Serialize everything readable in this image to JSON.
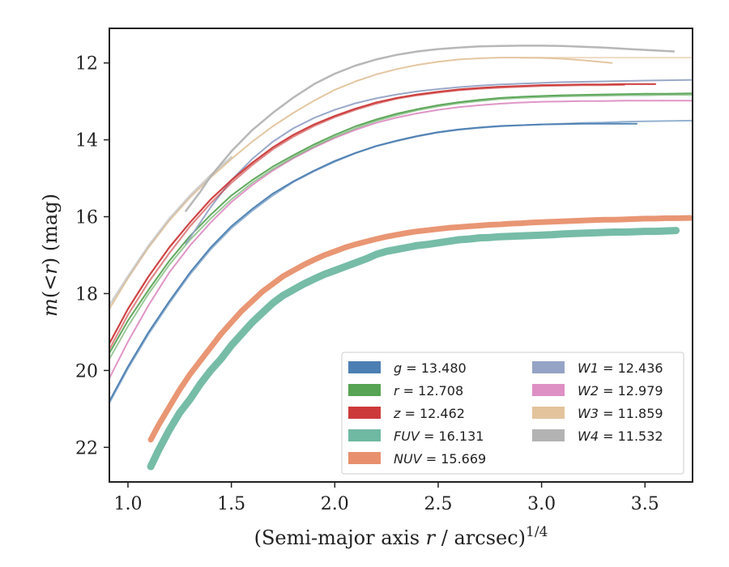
{
  "chart_data": {
    "type": "line",
    "xlabel": "(Semi-major axis r / arcsec)^1/4",
    "xlabel_parts": {
      "prefix": "(Semi-major axis ",
      "var": "r",
      "suffix": " / arcsec)",
      "sup": "1/4"
    },
    "ylabel": "m(< r) (mag)",
    "ylabel_parts": {
      "var": "m",
      "mid": "(<",
      "var2": "r",
      "suffix": ") (mag)"
    },
    "xlim": [
      0.91,
      3.73
    ],
    "ylim": [
      22.9,
      11.1
    ],
    "y_inverted": true,
    "xticks": [
      1.0,
      1.5,
      2.0,
      2.5,
      3.0,
      3.5
    ],
    "xtick_labels": [
      "1.0",
      "1.5",
      "2.0",
      "2.5",
      "3.0",
      "3.5"
    ],
    "yticks": [
      12,
      14,
      16,
      18,
      20,
      22
    ],
    "ytick_labels": [
      "12",
      "14",
      "16",
      "18",
      "20",
      "22"
    ],
    "legend_position": "lower-right",
    "legend_columns": 2,
    "series": [
      {
        "name": "g",
        "value": "13.480",
        "color": "#4c7fb3",
        "width": 2,
        "lines": [
          {
            "x": [
              0.91,
              1.0,
              1.1,
              1.2,
              1.3,
              1.4,
              1.5,
              1.6,
              1.7,
              1.8,
              1.9,
              2.0,
              2.1,
              2.2,
              2.3,
              2.4,
              2.5,
              2.6,
              2.7,
              2.8,
              2.9,
              3.0,
              3.1,
              3.2,
              3.3,
              3.46
            ],
            "y": [
              20.8,
              19.9,
              19.0,
              18.2,
              17.45,
              16.8,
              16.25,
              15.8,
              15.4,
              15.08,
              14.8,
              14.55,
              14.34,
              14.16,
              14.02,
              13.9,
              13.8,
              13.73,
              13.68,
              13.64,
              13.62,
              13.6,
              13.59,
              13.58,
              13.58,
              13.58
            ]
          },
          {
            "x": [
              0.91,
              1.0,
              1.1,
              1.2,
              1.3,
              1.4,
              1.5,
              1.6,
              1.7,
              1.8,
              1.9,
              2.0,
              2.1,
              2.2,
              2.3,
              2.4,
              2.5,
              2.6,
              2.7,
              2.8,
              2.9,
              3.0,
              3.1,
              3.2,
              3.3,
              3.4,
              3.5,
              3.6,
              3.73
            ],
            "y": [
              20.85,
              19.95,
              19.05,
              18.25,
              17.5,
              16.85,
              16.3,
              15.85,
              15.45,
              15.1,
              14.82,
              14.57,
              14.35,
              14.17,
              14.03,
              13.91,
              13.81,
              13.74,
              13.69,
              13.65,
              13.62,
              13.6,
              13.58,
              13.56,
              13.55,
              13.53,
              13.52,
              13.51,
              13.5
            ]
          }
        ]
      },
      {
        "name": "r",
        "value": "12.708",
        "color": "#57a454",
        "width": 2,
        "lines": [
          {
            "x": [
              0.91,
              1.0,
              1.1,
              1.2,
              1.3,
              1.4,
              1.5,
              1.6,
              1.7,
              1.8,
              1.9,
              2.0,
              2.1,
              2.2,
              2.3,
              2.4,
              2.5,
              2.6,
              2.7,
              2.8,
              2.9,
              3.0,
              3.1,
              3.2,
              3.3,
              3.4,
              3.5,
              3.6,
              3.73
            ],
            "y": [
              19.55,
              18.7,
              17.9,
              17.15,
              16.5,
              15.95,
              15.45,
              15.05,
              14.7,
              14.4,
              14.12,
              13.87,
              13.65,
              13.47,
              13.32,
              13.2,
              13.1,
              13.02,
              12.96,
              12.91,
              12.88,
              12.86,
              12.84,
              12.83,
              12.82,
              12.81,
              12.8,
              12.8,
              12.79
            ]
          },
          {
            "x": [
              0.91,
              1.0,
              1.1,
              1.2,
              1.3,
              1.4,
              1.5,
              1.6,
              1.7,
              1.8,
              1.9,
              2.0,
              2.1,
              2.2,
              2.3,
              2.4,
              2.5,
              2.6,
              2.7,
              2.8,
              2.9,
              3.0,
              3.1,
              3.2,
              3.3,
              3.4,
              3.5,
              3.6,
              3.73
            ],
            "y": [
              19.7,
              18.85,
              18.0,
              17.25,
              16.6,
              16.05,
              15.55,
              15.12,
              14.76,
              14.45,
              14.17,
              13.92,
              13.7,
              13.51,
              13.36,
              13.23,
              13.13,
              13.05,
              12.99,
              12.94,
              12.91,
              12.89,
              12.87,
              12.86,
              12.85,
              12.84,
              12.84,
              12.83,
              12.83
            ]
          }
        ]
      },
      {
        "name": "z",
        "value": "12.462",
        "color": "#cc3a3a",
        "width": 2.2,
        "lines": [
          {
            "x": [
              0.91,
              1.0,
              1.1,
              1.2,
              1.3,
              1.4,
              1.5,
              1.6,
              1.7,
              1.8,
              1.9,
              2.0,
              2.1,
              2.2,
              2.3,
              2.4,
              2.5,
              2.6,
              2.7,
              2.8,
              2.9,
              3.0,
              3.1,
              3.2,
              3.3,
              3.4,
              3.55
            ],
            "y": [
              19.3,
              18.4,
              17.55,
              16.8,
              16.15,
              15.55,
              15.05,
              14.6,
              14.2,
              13.87,
              13.6,
              13.38,
              13.19,
              13.03,
              12.91,
              12.82,
              12.75,
              12.69,
              12.65,
              12.62,
              12.6,
              12.58,
              12.57,
              12.56,
              12.56,
              12.55,
              12.55
            ]
          },
          {
            "x": [
              0.91,
              1.0,
              1.1,
              1.2,
              1.3,
              1.4,
              1.5,
              1.6,
              1.7,
              1.8,
              1.9,
              2.0,
              2.1,
              2.2,
              2.3,
              2.4,
              2.5,
              2.6,
              2.7,
              2.8,
              2.9,
              3.0,
              3.1,
              3.2,
              3.3,
              3.4
            ],
            "y": [
              19.45,
              18.55,
              17.7,
              16.95,
              16.25,
              15.65,
              15.12,
              14.66,
              14.25,
              13.92,
              13.64,
              13.41,
              13.22,
              13.06,
              12.93,
              12.84,
              12.77,
              12.71,
              12.67,
              12.64,
              12.62,
              12.6,
              12.59,
              12.58,
              12.58,
              12.57
            ]
          }
        ]
      },
      {
        "name": "FUV",
        "value": "16.131",
        "color": "#6fb8a2",
        "width": 9,
        "lines": [
          {
            "x": [
              1.11,
              1.15,
              1.2,
              1.25,
              1.3,
              1.35,
              1.4,
              1.45,
              1.5,
              1.55,
              1.6,
              1.65,
              1.7,
              1.75,
              1.8,
              1.85,
              1.9,
              1.95,
              2.0,
              2.05,
              2.1,
              2.15,
              2.2,
              2.25,
              2.3,
              2.35,
              2.4,
              2.45,
              2.5,
              2.55,
              2.6,
              2.65,
              2.7,
              2.75,
              2.8,
              2.85,
              2.9,
              2.95,
              3.0,
              3.05,
              3.1,
              3.15,
              3.2,
              3.25,
              3.3,
              3.35,
              3.4,
              3.45,
              3.5,
              3.55,
              3.6,
              3.65
            ],
            "y": [
              22.5,
              22.05,
              21.55,
              21.1,
              20.75,
              20.35,
              20.0,
              19.7,
              19.35,
              19.05,
              18.75,
              18.5,
              18.25,
              18.05,
              17.9,
              17.75,
              17.62,
              17.5,
              17.4,
              17.3,
              17.2,
              17.1,
              16.98,
              16.9,
              16.85,
              16.8,
              16.75,
              16.72,
              16.68,
              16.64,
              16.6,
              16.58,
              16.55,
              16.54,
              16.52,
              16.51,
              16.5,
              16.49,
              16.48,
              16.47,
              16.45,
              16.44,
              16.43,
              16.42,
              16.41,
              16.4,
              16.4,
              16.39,
              16.38,
              16.38,
              16.37,
              16.36
            ]
          }
        ]
      },
      {
        "name": "NUV",
        "value": "15.669",
        "color": "#e8906d",
        "width": 7,
        "lines": [
          {
            "x": [
              1.11,
              1.15,
              1.2,
              1.25,
              1.3,
              1.35,
              1.4,
              1.45,
              1.5,
              1.55,
              1.6,
              1.65,
              1.7,
              1.75,
              1.8,
              1.85,
              1.9,
              1.95,
              2.0,
              2.05,
              2.1,
              2.15,
              2.2,
              2.25,
              2.3,
              2.35,
              2.4,
              2.45,
              2.5,
              2.55,
              2.6,
              2.65,
              2.7,
              2.75,
              2.8,
              2.85,
              2.9,
              2.95,
              3.0,
              3.05,
              3.1,
              3.15,
              3.2,
              3.25,
              3.3,
              3.35,
              3.4,
              3.45,
              3.5,
              3.55,
              3.6,
              3.65,
              3.73
            ],
            "y": [
              21.8,
              21.4,
              20.95,
              20.5,
              20.1,
              19.75,
              19.4,
              19.05,
              18.75,
              18.45,
              18.2,
              17.95,
              17.75,
              17.55,
              17.4,
              17.25,
              17.12,
              17.0,
              16.9,
              16.8,
              16.72,
              16.65,
              16.58,
              16.52,
              16.47,
              16.42,
              16.38,
              16.35,
              16.32,
              16.29,
              16.27,
              16.25,
              16.23,
              16.21,
              16.2,
              16.18,
              16.17,
              16.15,
              16.14,
              16.13,
              16.12,
              16.11,
              16.1,
              16.09,
              16.08,
              16.08,
              16.07,
              16.06,
              16.05,
              16.05,
              16.04,
              16.04,
              16.03
            ]
          }
        ]
      },
      {
        "name": "W1",
        "value": "12.436",
        "color": "#95a3c6",
        "width": 2,
        "lines": [
          {
            "x": [
              1.28,
              1.35,
              1.4,
              1.5,
              1.6,
              1.7,
              1.8,
              1.9,
              2.0,
              2.1,
              2.2,
              2.3,
              2.4,
              2.5,
              2.6,
              2.7,
              2.8,
              2.9,
              3.0,
              3.1,
              3.2,
              3.3,
              3.4,
              3.5,
              3.6,
              3.73
            ],
            "y": [
              16.7,
              16.15,
              15.75,
              15.05,
              14.5,
              14.05,
              13.7,
              13.43,
              13.22,
              13.05,
              12.92,
              12.82,
              12.74,
              12.68,
              12.63,
              12.59,
              12.56,
              12.54,
              12.52,
              12.5,
              12.49,
              12.48,
              12.47,
              12.46,
              12.45,
              12.44
            ]
          }
        ]
      },
      {
        "name": "W2",
        "value": "12.979",
        "color": "#de8fc4",
        "width": 2,
        "lines": [
          {
            "x": [
              0.91,
              1.0,
              1.1,
              1.2,
              1.3,
              1.4,
              1.5,
              1.6,
              1.7,
              1.8,
              1.9,
              2.0,
              2.1,
              2.2,
              2.3,
              2.4,
              2.5,
              2.6,
              2.7,
              2.8,
              2.9,
              3.0,
              3.1,
              3.2,
              3.3,
              3.4,
              3.5,
              3.6,
              3.73
            ],
            "y": [
              20.2,
              19.25,
              18.3,
              17.45,
              16.75,
              16.15,
              15.62,
              15.18,
              14.8,
              14.48,
              14.2,
              13.95,
              13.74,
              13.56,
              13.42,
              13.31,
              13.22,
              13.15,
              13.1,
              13.06,
              13.03,
              13.01,
              13.0,
              12.99,
              12.99,
              12.98,
              12.98,
              12.98,
              12.98
            ]
          }
        ]
      },
      {
        "name": "W3",
        "value": "11.859",
        "color": "#e3c39c",
        "width": 2,
        "lines": [
          {
            "x": [
              0.91,
              1.0,
              1.1,
              1.2,
              1.3,
              1.4,
              1.5,
              1.6,
              1.7,
              1.8,
              1.9,
              2.0,
              2.1,
              2.2,
              2.3,
              2.4,
              2.5,
              2.6,
              2.7,
              2.8,
              2.9,
              3.0,
              3.1,
              3.2,
              3.34
            ],
            "y": [
              18.4,
              17.6,
              16.8,
              16.1,
              15.5,
              14.98,
              14.5,
              14.05,
              13.65,
              13.3,
              12.98,
              12.7,
              12.48,
              12.3,
              12.16,
              12.05,
              11.97,
              11.91,
              11.88,
              11.86,
              11.86,
              11.87,
              11.89,
              11.93,
              12.0
            ]
          },
          {
            "x": [
              2.9,
              3.0,
              3.1,
              3.2,
              3.3,
              3.4,
              3.5,
              3.6,
              3.73
            ],
            "y": [
              11.87,
              11.86,
              11.86,
              11.86,
              11.86,
              11.86,
              11.86,
              11.86,
              11.86
            ]
          }
        ]
      },
      {
        "name": "W4",
        "value": "11.532",
        "color": "#b3b3b3",
        "width": 2.5,
        "lines": [
          {
            "x": [
              1.28,
              1.35,
              1.4,
              1.5,
              1.6,
              1.7,
              1.8,
              1.9,
              2.0,
              2.1,
              2.2,
              2.3,
              2.4,
              2.5,
              2.6,
              2.7,
              2.8,
              2.9,
              3.0,
              3.1,
              3.2,
              3.3,
              3.4,
              3.5,
              3.64
            ],
            "y": [
              15.85,
              15.35,
              14.95,
              14.3,
              13.75,
              13.3,
              12.9,
              12.55,
              12.28,
              12.07,
              11.91,
              11.79,
              11.7,
              11.64,
              11.6,
              11.57,
              11.56,
              11.55,
              11.55,
              11.56,
              11.58,
              11.6,
              11.63,
              11.66,
              11.7
            ]
          },
          {
            "x": [
              0.91,
              1.0,
              1.1,
              1.2,
              1.3,
              1.4,
              1.5
            ],
            "y": [
              18.3,
              17.55,
              16.75,
              16.05,
              15.45,
              14.92,
              14.45
            ]
          }
        ]
      }
    ]
  }
}
